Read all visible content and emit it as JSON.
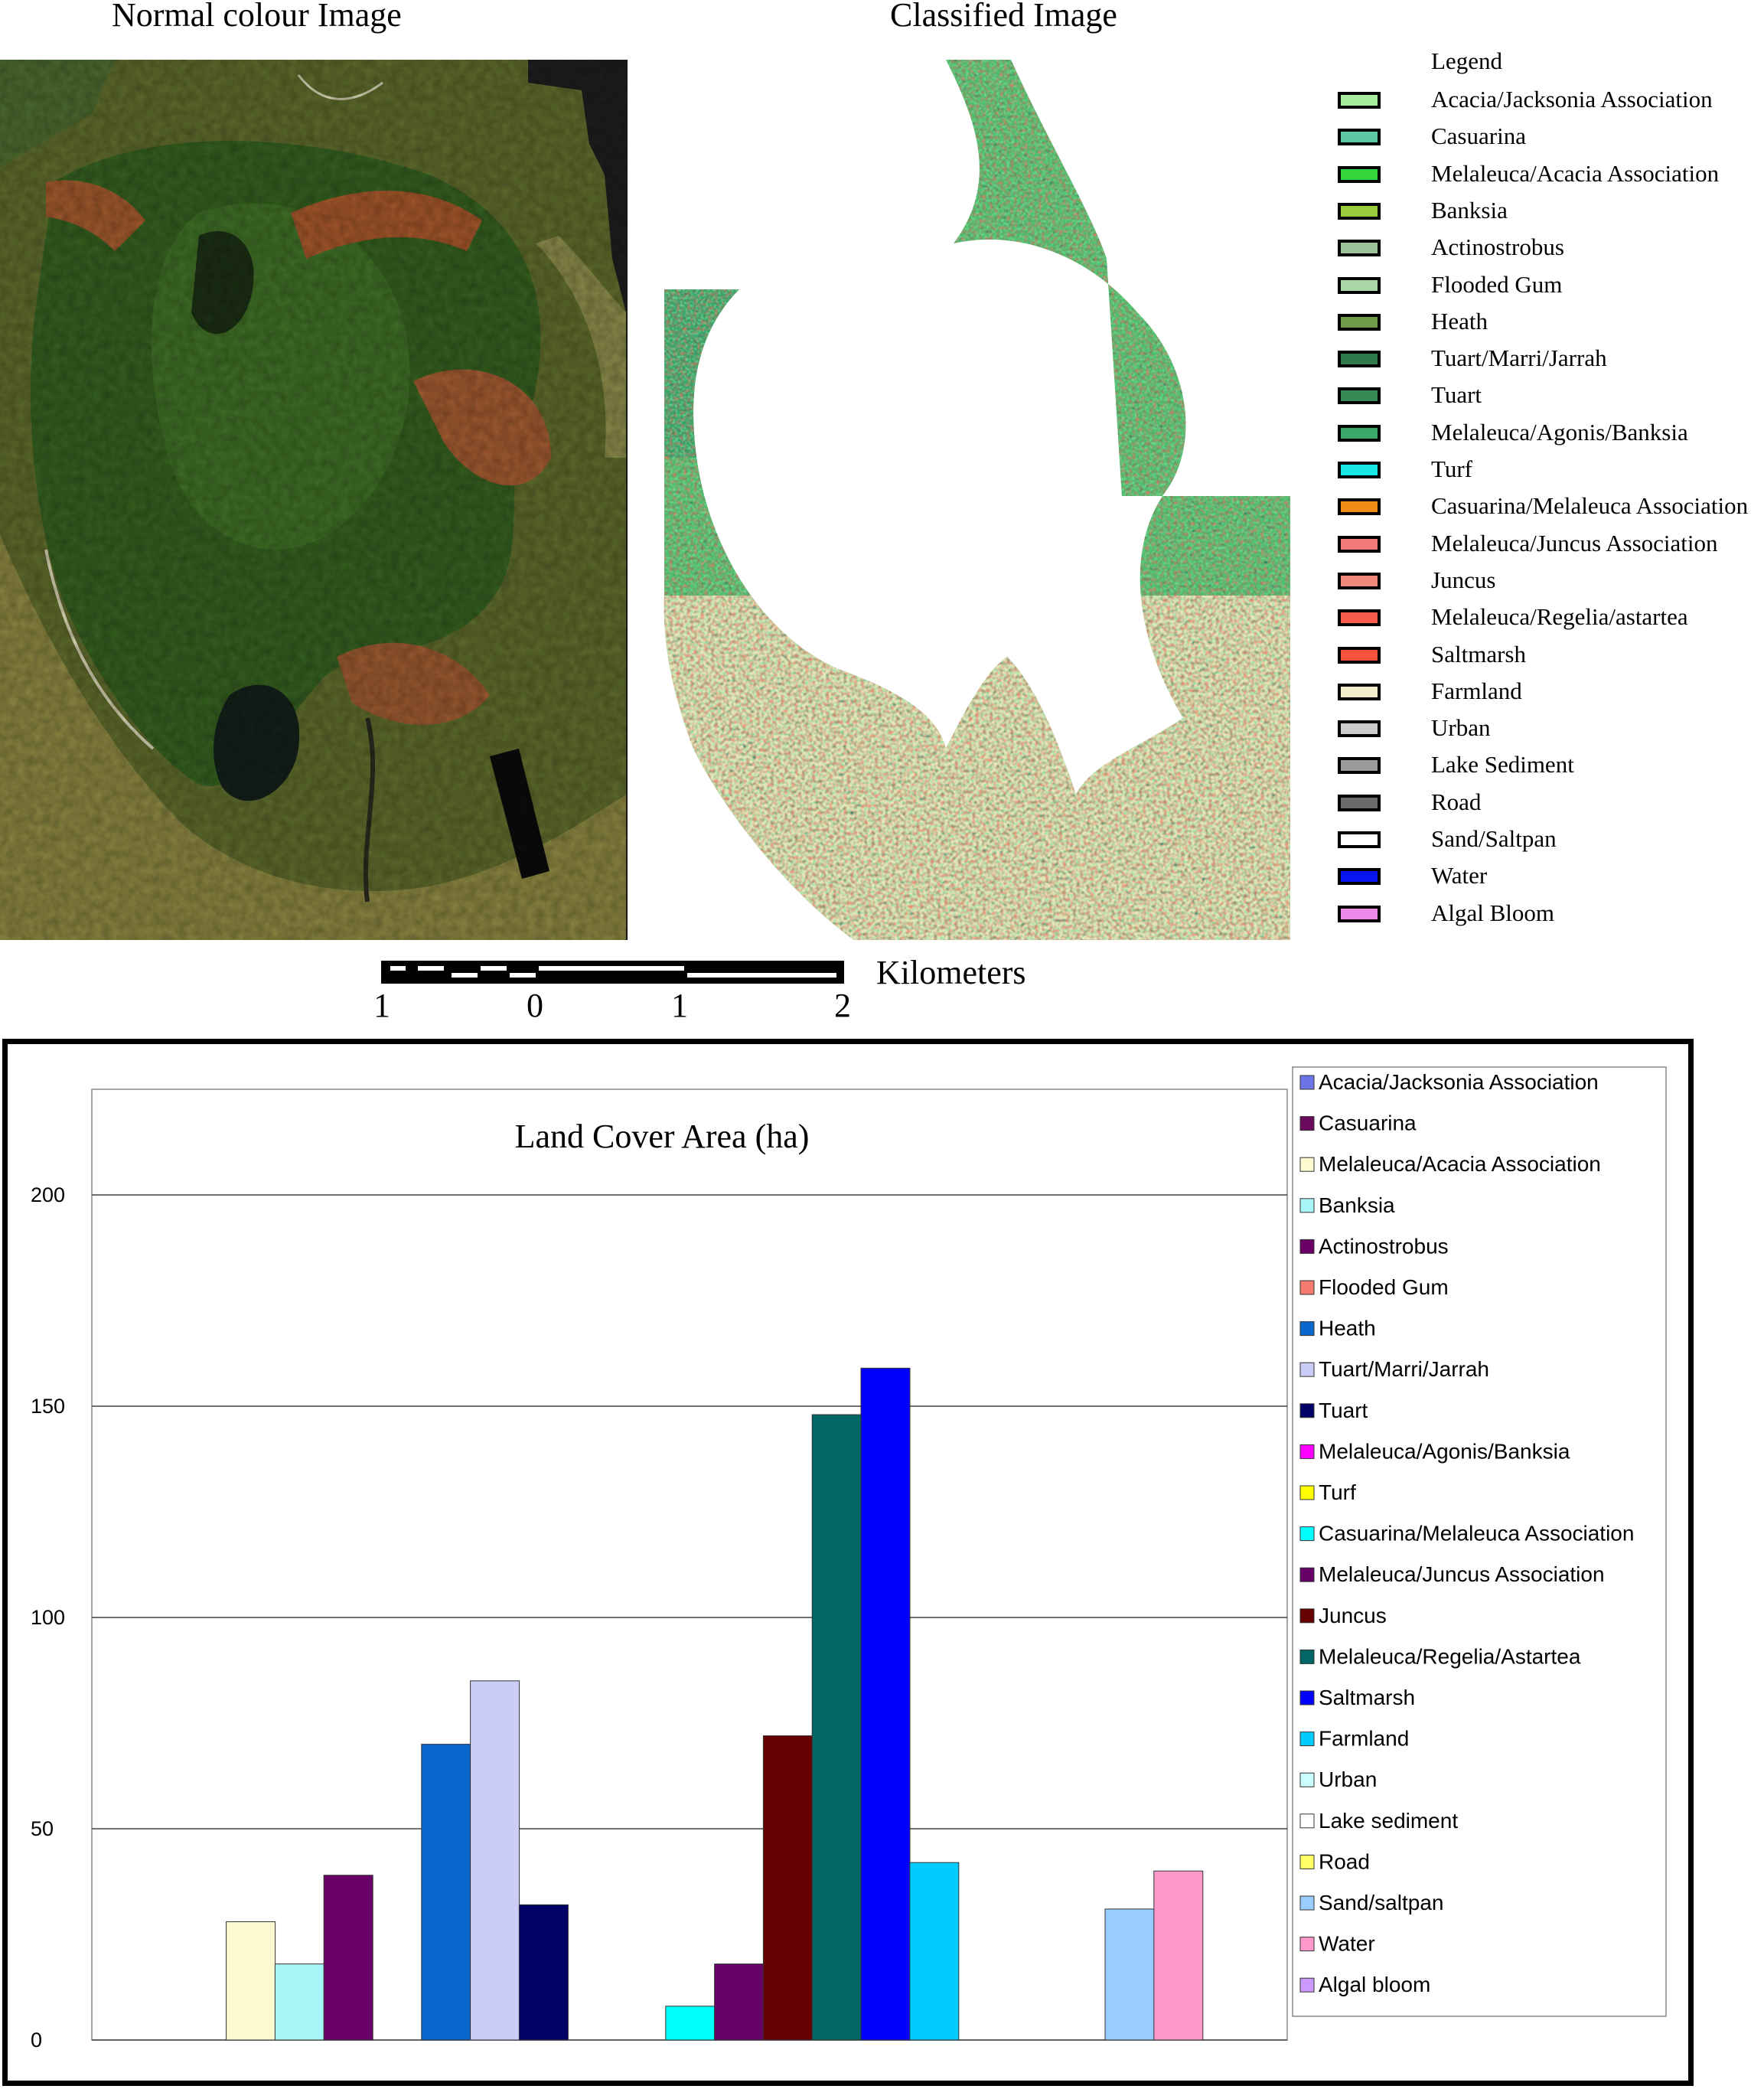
{
  "top": {
    "left_title": "Normal colour Image",
    "right_title": "Classified  Image",
    "legend_title": "Legend",
    "legend": [
      {
        "label": "Acacia/Jacksonia Association",
        "color": "#a6ec9c"
      },
      {
        "label": "Casuarina",
        "color": "#5ec8a4"
      },
      {
        "label": "Melaleuca/Acacia Association",
        "color": "#35d43a"
      },
      {
        "label": "Banksia",
        "color": "#9ccb3c"
      },
      {
        "label": "Actinostrobus",
        "color": "#9cc49c"
      },
      {
        "label": "Flooded Gum",
        "color": "#a9d8a6"
      },
      {
        "label": "Heath",
        "color": "#6f9a48"
      },
      {
        "label": "Tuart/Marri/Jarrah",
        "color": "#2e7a4c"
      },
      {
        "label": "Tuart",
        "color": "#358a54"
      },
      {
        "label": "Melaleuca/Agonis/Banksia",
        "color": "#3aa868"
      },
      {
        "label": "Turf",
        "color": "#18e6e6"
      },
      {
        "label": "Casuarina/Melaleuca Association",
        "color": "#f08c14"
      },
      {
        "label": "Melaleuca/Juncus Association",
        "color": "#f47c78"
      },
      {
        "label": "Juncus",
        "color": "#f0887c"
      },
      {
        "label": "Melaleuca/Regelia/astartea",
        "color": "#f85a4c"
      },
      {
        "label": "Saltmarsh",
        "color": "#f8543c"
      },
      {
        "label": "Farmland",
        "color": "#f4ecc8"
      },
      {
        "label": "Urban",
        "color": "#cccccc"
      },
      {
        "label": "Lake Sediment",
        "color": "#9a9a9a"
      },
      {
        "label": "Road",
        "color": "#6a6a6a"
      },
      {
        "label": "Sand/Saltpan",
        "color": "#ffffff"
      },
      {
        "label": "Water",
        "color": "#0a14f0"
      },
      {
        "label": "Algal Bloom",
        "color": "#ee88e8"
      }
    ],
    "scale": {
      "ticks": [
        "1",
        "0",
        "1",
        "2"
      ],
      "unit": "Kilometers"
    }
  },
  "chart_data": {
    "type": "bar",
    "title": "Land Cover Area (ha)",
    "xlabel": "",
    "ylabel": "",
    "ylim": [
      0,
      225
    ],
    "yticks": [
      0,
      50,
      100,
      150,
      200
    ],
    "grid": true,
    "legend_position": "right",
    "series": [
      {
        "name": "Acacia/Jacksonia  Association",
        "color": "#6b73e6",
        "value": 0
      },
      {
        "name": "Casuarina",
        "color": "#6b0a5c",
        "value": 0
      },
      {
        "name": "Melaleuca/Acacia Association",
        "color": "#fdfad0",
        "value": 28
      },
      {
        "name": "Banksia",
        "color": "#a8f6f8",
        "value": 18
      },
      {
        "name": "Actinostrobus",
        "color": "#6a0066",
        "value": 39
      },
      {
        "name": "Flooded Gum",
        "color": "#f67a6e",
        "value": 0
      },
      {
        "name": "Heath",
        "color": "#0a66cc",
        "value": 70
      },
      {
        "name": "Tuart/Marri/Jarrah",
        "color": "#ccccf8",
        "value": 85
      },
      {
        "name": "Tuart",
        "color": "#000066",
        "value": 32
      },
      {
        "name": "Melaleuca/Agonis/Banksia",
        "color": "#ff00ff",
        "value": 0
      },
      {
        "name": "Turf",
        "color": "#ffff00",
        "value": 0
      },
      {
        "name": "Casuarina/Melaleuca Association",
        "color": "#00ffff",
        "value": 8
      },
      {
        "name": "Melaleuca/Juncus Association",
        "color": "#660066",
        "value": 18
      },
      {
        "name": "Juncus",
        "color": "#660000",
        "value": 72
      },
      {
        "name": "Melaleuca/Regelia/Astartea",
        "color": "#006666",
        "value": 148
      },
      {
        "name": "Saltmarsh",
        "color": "#0000ff",
        "value": 159
      },
      {
        "name": "Farmland",
        "color": "#00ccff",
        "value": 42
      },
      {
        "name": "Urban",
        "color": "#ccffff",
        "value": 0
      },
      {
        "name": "Lake sediment",
        "color": "#ffffff",
        "value": 0
      },
      {
        "name": "Road",
        "color": "#ffff66",
        "value": 0
      },
      {
        "name": "Sand/saltpan",
        "color": "#99ccff",
        "value": 31
      },
      {
        "name": "Water",
        "color": "#ff99cc",
        "value": 40
      },
      {
        "name": "Algal bloom",
        "color": "#cc99ff",
        "value": 0
      }
    ]
  }
}
